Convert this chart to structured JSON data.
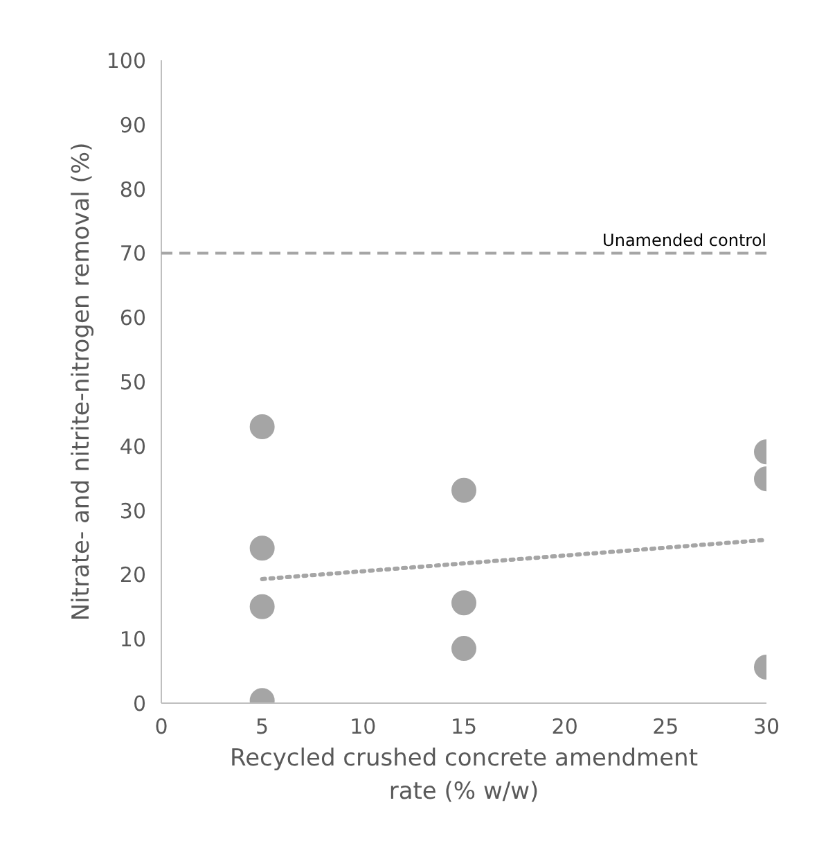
{
  "chart_data": {
    "type": "scatter",
    "xlabel": "Recycled crushed concrete amendment rate (% w/w)",
    "ylabel": "Nitrate- and nitrite-nitrogen removal (%)",
    "series": [
      {
        "color": "#a5a5a5",
        "marker": "circle",
        "x": [
          5,
          5,
          5,
          5,
          15,
          15,
          15,
          30,
          30,
          30
        ],
        "values": [
          43.0,
          24.1,
          15.0,
          0.4,
          33.1,
          15.6,
          8.5,
          39.1,
          34.9,
          5.6
        ]
      },
      {
        "type": "line",
        "color": "#a5a5a5",
        "line_style": "dotted",
        "marker": "none",
        "x": [
          5,
          30
        ],
        "values": [
          19.3,
          25.4
        ]
      }
    ],
    "xlim": [
      0,
      30
    ],
    "ylim": [
      0,
      100
    ],
    "xticks": [
      0,
      5,
      10,
      15,
      20,
      25,
      30
    ],
    "yticks": [
      0,
      10,
      20,
      30,
      40,
      50,
      60,
      70,
      80,
      90,
      100
    ],
    "ref_lines": [
      {
        "axis": "y",
        "value": 70,
        "label": "Unamended control",
        "color": "#a5a5a5",
        "line_style": "dashed"
      }
    ],
    "grid": false
  }
}
